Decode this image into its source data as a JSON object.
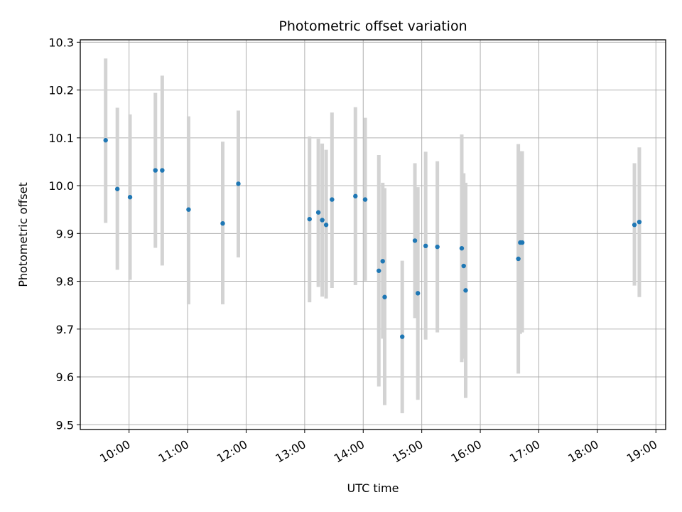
{
  "chart_data": {
    "type": "scatter",
    "title": "Photometric offset variation",
    "xlabel": "UTC time",
    "ylabel": "Photometric offset",
    "x_ticks": [
      "10:00",
      "11:00",
      "12:00",
      "13:00",
      "14:00",
      "15:00",
      "16:00",
      "17:00",
      "18:00",
      "19:00"
    ],
    "y_ticks": [
      "9.5",
      "9.6",
      "9.7",
      "9.8",
      "9.9",
      "10.0",
      "10.1",
      "10.2",
      "10.3"
    ],
    "xlim": [
      "09:10",
      "19:10"
    ],
    "ylim": [
      9.49,
      10.305
    ],
    "grid": true,
    "point_color": "#1f77b4",
    "errorbar_color": "#d3d3d3",
    "points": [
      {
        "x": "09:36",
        "y": 10.095,
        "ylow": 9.922,
        "yhigh": 10.266
      },
      {
        "x": "09:48",
        "y": 9.993,
        "ylow": 9.824,
        "yhigh": 10.163
      },
      {
        "x": "10:01",
        "y": 9.976,
        "ylow": 9.803,
        "yhigh": 10.149
      },
      {
        "x": "10:27",
        "y": 10.032,
        "ylow": 9.87,
        "yhigh": 10.194
      },
      {
        "x": "10:34",
        "y": 10.032,
        "ylow": 9.833,
        "yhigh": 10.23
      },
      {
        "x": "11:01",
        "y": 9.95,
        "ylow": 9.752,
        "yhigh": 10.145
      },
      {
        "x": "11:36",
        "y": 9.921,
        "ylow": 9.752,
        "yhigh": 10.092
      },
      {
        "x": "11:52",
        "y": 10.004,
        "ylow": 9.85,
        "yhigh": 10.157
      },
      {
        "x": "13:05",
        "y": 9.93,
        "ylow": 9.756,
        "yhigh": 10.103
      },
      {
        "x": "13:14",
        "y": 9.944,
        "ylow": 9.788,
        "yhigh": 10.098
      },
      {
        "x": "13:18",
        "y": 9.928,
        "ylow": 9.768,
        "yhigh": 10.088
      },
      {
        "x": "13:22",
        "y": 9.918,
        "ylow": 9.764,
        "yhigh": 10.075
      },
      {
        "x": "13:28",
        "y": 9.971,
        "ylow": 9.786,
        "yhigh": 10.153
      },
      {
        "x": "13:52",
        "y": 9.978,
        "ylow": 9.792,
        "yhigh": 10.164
      },
      {
        "x": "14:02",
        "y": 9.971,
        "ylow": 9.801,
        "yhigh": 10.142
      },
      {
        "x": "14:16",
        "y": 9.822,
        "ylow": 9.58,
        "yhigh": 10.064
      },
      {
        "x": "14:20",
        "y": 9.842,
        "ylow": 9.68,
        "yhigh": 10.006
      },
      {
        "x": "14:22",
        "y": 9.767,
        "ylow": 9.541,
        "yhigh": 9.995
      },
      {
        "x": "14:40",
        "y": 9.684,
        "ylow": 9.524,
        "yhigh": 9.843
      },
      {
        "x": "14:53",
        "y": 9.885,
        "ylow": 9.723,
        "yhigh": 10.047
      },
      {
        "x": "14:56",
        "y": 9.775,
        "ylow": 9.552,
        "yhigh": 9.997
      },
      {
        "x": "15:04",
        "y": 9.874,
        "ylow": 9.678,
        "yhigh": 10.071
      },
      {
        "x": "15:16",
        "y": 9.872,
        "ylow": 9.693,
        "yhigh": 10.051
      },
      {
        "x": "15:41",
        "y": 9.869,
        "ylow": 9.631,
        "yhigh": 10.107
      },
      {
        "x": "15:43",
        "y": 9.832,
        "ylow": 9.638,
        "yhigh": 10.026
      },
      {
        "x": "15:45",
        "y": 9.781,
        "ylow": 9.556,
        "yhigh": 10.006
      },
      {
        "x": "16:39",
        "y": 9.847,
        "ylow": 9.607,
        "yhigh": 10.087
      },
      {
        "x": "16:41",
        "y": 9.881,
        "ylow": 9.69,
        "yhigh": 10.072
      },
      {
        "x": "16:43",
        "y": 9.881,
        "ylow": 9.693,
        "yhigh": 10.072
      },
      {
        "x": "18:38",
        "y": 9.918,
        "ylow": 9.791,
        "yhigh": 10.047
      },
      {
        "x": "18:43",
        "y": 9.924,
        "ylow": 9.767,
        "yhigh": 10.08
      }
    ]
  }
}
